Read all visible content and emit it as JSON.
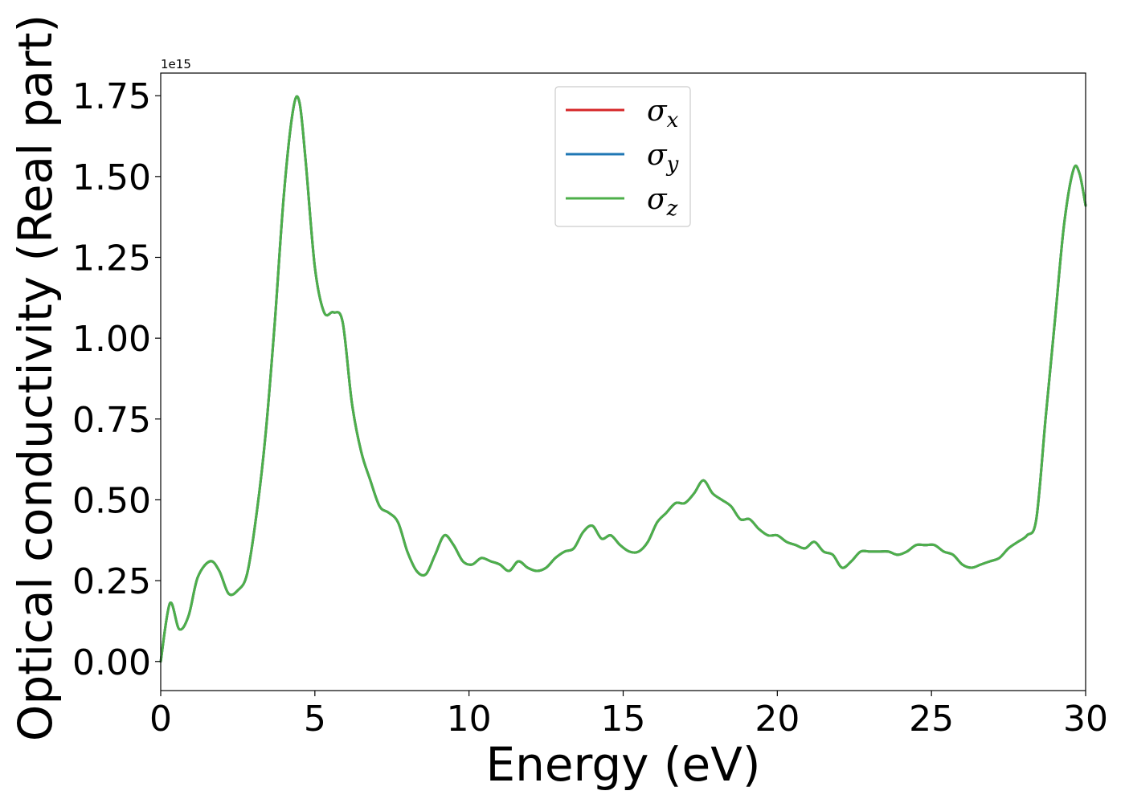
{
  "chart_data": {
    "type": "line",
    "xlabel": "Energy (eV)",
    "ylabel": "Optical conductivity (Real part)",
    "y_offset_label": "1e15",
    "xlim": [
      0,
      30
    ],
    "ylim": [
      -0.09,
      1.82
    ],
    "xticks": [
      0,
      5,
      10,
      15,
      20,
      25,
      30
    ],
    "xtick_labels": [
      "0",
      "5",
      "10",
      "15",
      "20",
      "25",
      "30"
    ],
    "yticks": [
      0.0,
      0.25,
      0.5,
      0.75,
      1.0,
      1.25,
      1.5,
      1.75
    ],
    "ytick_labels": [
      "0.00",
      "0.25",
      "0.50",
      "0.75",
      "1.00",
      "1.25",
      "1.50",
      "1.75"
    ],
    "grid": false,
    "legend_position": "upper-center",
    "x": [
      0,
      0.3,
      0.6,
      0.9,
      1.2,
      1.6,
      1.9,
      2.2,
      2.5,
      2.8,
      3.1,
      3.4,
      3.7,
      4.0,
      4.3,
      4.5,
      4.7,
      5.0,
      5.3,
      5.6,
      5.9,
      6.2,
      6.5,
      6.8,
      7.1,
      7.4,
      7.7,
      8.0,
      8.3,
      8.6,
      8.9,
      9.2,
      9.5,
      9.8,
      10.1,
      10.4,
      10.7,
      11.0,
      11.3,
      11.6,
      11.9,
      12.2,
      12.5,
      12.8,
      13.1,
      13.4,
      13.7,
      14.0,
      14.3,
      14.6,
      14.9,
      15.2,
      15.5,
      15.8,
      16.1,
      16.4,
      16.7,
      17.0,
      17.3,
      17.6,
      17.9,
      18.2,
      18.5,
      18.8,
      19.1,
      19.4,
      19.7,
      20.0,
      20.3,
      20.6,
      20.9,
      21.2,
      21.5,
      21.8,
      22.1,
      22.4,
      22.7,
      23.0,
      23.3,
      23.6,
      23.9,
      24.2,
      24.5,
      24.8,
      25.1,
      25.4,
      25.7,
      26.0,
      26.3,
      26.6,
      26.9,
      27.2,
      27.5,
      27.8,
      28.1,
      28.4,
      28.7,
      29.0,
      29.3,
      29.6,
      29.8,
      30.0
    ],
    "series": [
      {
        "name": "σx",
        "symbol": "σ",
        "sub": "x",
        "color": "#d62728",
        "values": [
          0.0,
          0.18,
          0.1,
          0.14,
          0.26,
          0.31,
          0.28,
          0.21,
          0.22,
          0.27,
          0.45,
          0.7,
          1.05,
          1.45,
          1.71,
          1.73,
          1.55,
          1.22,
          1.08,
          1.08,
          1.05,
          0.8,
          0.65,
          0.56,
          0.48,
          0.46,
          0.43,
          0.34,
          0.28,
          0.27,
          0.33,
          0.39,
          0.36,
          0.31,
          0.3,
          0.32,
          0.31,
          0.3,
          0.28,
          0.31,
          0.29,
          0.28,
          0.29,
          0.32,
          0.34,
          0.35,
          0.4,
          0.42,
          0.38,
          0.39,
          0.36,
          0.34,
          0.34,
          0.37,
          0.43,
          0.46,
          0.49,
          0.49,
          0.52,
          0.56,
          0.52,
          0.5,
          0.48,
          0.44,
          0.44,
          0.41,
          0.39,
          0.39,
          0.37,
          0.36,
          0.35,
          0.37,
          0.34,
          0.33,
          0.29,
          0.31,
          0.34,
          0.34,
          0.34,
          0.34,
          0.33,
          0.34,
          0.36,
          0.36,
          0.36,
          0.34,
          0.33,
          0.3,
          0.29,
          0.3,
          0.31,
          0.32,
          0.35,
          0.37,
          0.39,
          0.44,
          0.75,
          1.05,
          1.35,
          1.52,
          1.51,
          1.41
        ]
      },
      {
        "name": "σy",
        "symbol": "σ",
        "sub": "y",
        "color": "#1f77b4",
        "values": [
          0.0,
          0.18,
          0.1,
          0.14,
          0.26,
          0.31,
          0.28,
          0.21,
          0.22,
          0.27,
          0.45,
          0.7,
          1.05,
          1.45,
          1.71,
          1.73,
          1.55,
          1.22,
          1.08,
          1.08,
          1.05,
          0.8,
          0.65,
          0.56,
          0.48,
          0.46,
          0.43,
          0.34,
          0.28,
          0.27,
          0.33,
          0.39,
          0.36,
          0.31,
          0.3,
          0.32,
          0.31,
          0.3,
          0.28,
          0.31,
          0.29,
          0.28,
          0.29,
          0.32,
          0.34,
          0.35,
          0.4,
          0.42,
          0.38,
          0.39,
          0.36,
          0.34,
          0.34,
          0.37,
          0.43,
          0.46,
          0.49,
          0.49,
          0.52,
          0.56,
          0.52,
          0.5,
          0.48,
          0.44,
          0.44,
          0.41,
          0.39,
          0.39,
          0.37,
          0.36,
          0.35,
          0.37,
          0.34,
          0.33,
          0.29,
          0.31,
          0.34,
          0.34,
          0.34,
          0.34,
          0.33,
          0.34,
          0.36,
          0.36,
          0.36,
          0.34,
          0.33,
          0.3,
          0.29,
          0.3,
          0.31,
          0.32,
          0.35,
          0.37,
          0.39,
          0.44,
          0.75,
          1.05,
          1.35,
          1.52,
          1.51,
          1.41
        ]
      },
      {
        "name": "σz",
        "symbol": "σ",
        "sub": "z",
        "color": "#4daf4a",
        "values": [
          0.0,
          0.18,
          0.1,
          0.14,
          0.26,
          0.31,
          0.28,
          0.21,
          0.22,
          0.27,
          0.45,
          0.7,
          1.05,
          1.45,
          1.71,
          1.73,
          1.55,
          1.22,
          1.08,
          1.08,
          1.05,
          0.8,
          0.65,
          0.56,
          0.48,
          0.46,
          0.43,
          0.34,
          0.28,
          0.27,
          0.33,
          0.39,
          0.36,
          0.31,
          0.3,
          0.32,
          0.31,
          0.3,
          0.28,
          0.31,
          0.29,
          0.28,
          0.29,
          0.32,
          0.34,
          0.35,
          0.4,
          0.42,
          0.38,
          0.39,
          0.36,
          0.34,
          0.34,
          0.37,
          0.43,
          0.46,
          0.49,
          0.49,
          0.52,
          0.56,
          0.52,
          0.5,
          0.48,
          0.44,
          0.44,
          0.41,
          0.39,
          0.39,
          0.37,
          0.36,
          0.35,
          0.37,
          0.34,
          0.33,
          0.29,
          0.31,
          0.34,
          0.34,
          0.34,
          0.34,
          0.33,
          0.34,
          0.36,
          0.36,
          0.36,
          0.34,
          0.33,
          0.3,
          0.29,
          0.3,
          0.31,
          0.32,
          0.35,
          0.37,
          0.39,
          0.44,
          0.75,
          1.05,
          1.35,
          1.52,
          1.51,
          1.41
        ]
      }
    ]
  }
}
